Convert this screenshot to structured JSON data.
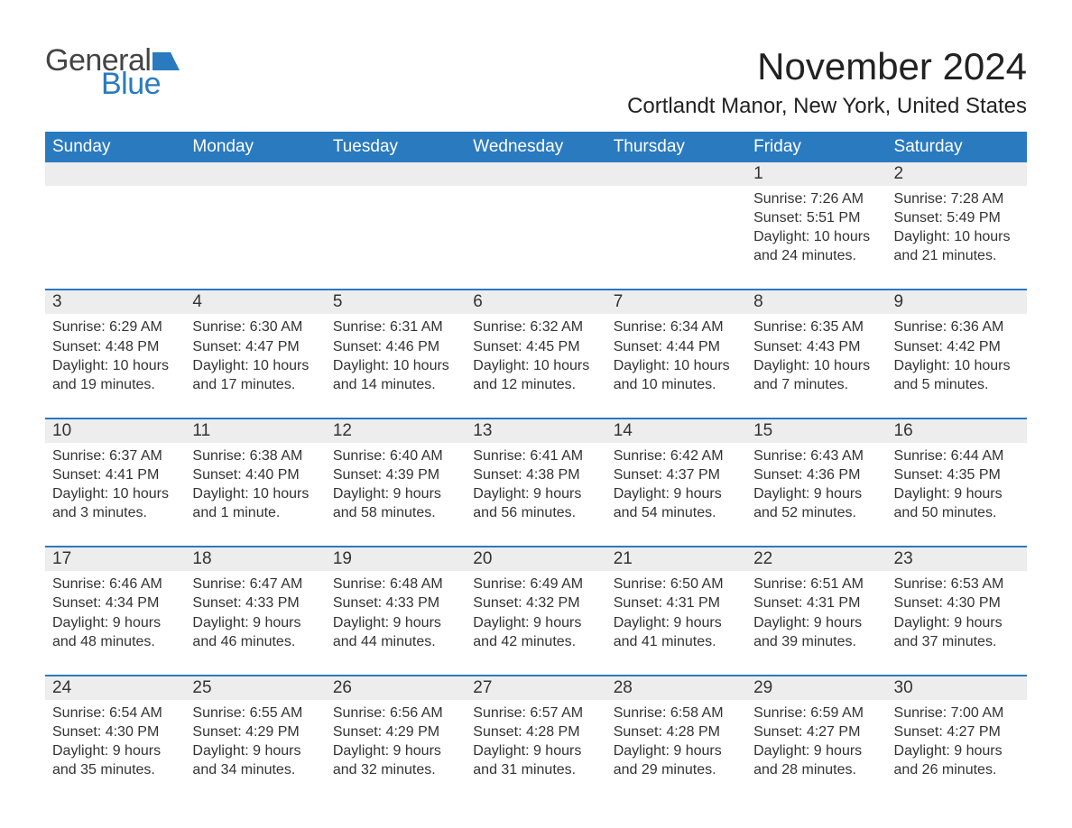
{
  "logo": {
    "text1": "General",
    "text2": "Blue",
    "shape_color": "#2a7ac0"
  },
  "title": "November 2024",
  "location": "Cortlandt Manor, New York, United States",
  "colors": {
    "header_bg": "#2a7ac0",
    "header_text": "#ffffff",
    "daynum_bg": "#ededed",
    "body_text": "#333333",
    "row_border": "#2a7ac0",
    "page_bg": "#ffffff"
  },
  "typography": {
    "title_fontsize": 42,
    "location_fontsize": 24,
    "header_fontsize": 19,
    "daynum_fontsize": 19,
    "body_fontsize": 16
  },
  "day_headers": [
    "Sunday",
    "Monday",
    "Tuesday",
    "Wednesday",
    "Thursday",
    "Friday",
    "Saturday"
  ],
  "weeks": [
    [
      {
        "n": "",
        "sunrise": "",
        "sunset": "",
        "daylight": ""
      },
      {
        "n": "",
        "sunrise": "",
        "sunset": "",
        "daylight": ""
      },
      {
        "n": "",
        "sunrise": "",
        "sunset": "",
        "daylight": ""
      },
      {
        "n": "",
        "sunrise": "",
        "sunset": "",
        "daylight": ""
      },
      {
        "n": "",
        "sunrise": "",
        "sunset": "",
        "daylight": ""
      },
      {
        "n": "1",
        "sunrise": "Sunrise: 7:26 AM",
        "sunset": "Sunset: 5:51 PM",
        "daylight": "Daylight: 10 hours and 24 minutes."
      },
      {
        "n": "2",
        "sunrise": "Sunrise: 7:28 AM",
        "sunset": "Sunset: 5:49 PM",
        "daylight": "Daylight: 10 hours and 21 minutes."
      }
    ],
    [
      {
        "n": "3",
        "sunrise": "Sunrise: 6:29 AM",
        "sunset": "Sunset: 4:48 PM",
        "daylight": "Daylight: 10 hours and 19 minutes."
      },
      {
        "n": "4",
        "sunrise": "Sunrise: 6:30 AM",
        "sunset": "Sunset: 4:47 PM",
        "daylight": "Daylight: 10 hours and 17 minutes."
      },
      {
        "n": "5",
        "sunrise": "Sunrise: 6:31 AM",
        "sunset": "Sunset: 4:46 PM",
        "daylight": "Daylight: 10 hours and 14 minutes."
      },
      {
        "n": "6",
        "sunrise": "Sunrise: 6:32 AM",
        "sunset": "Sunset: 4:45 PM",
        "daylight": "Daylight: 10 hours and 12 minutes."
      },
      {
        "n": "7",
        "sunrise": "Sunrise: 6:34 AM",
        "sunset": "Sunset: 4:44 PM",
        "daylight": "Daylight: 10 hours and 10 minutes."
      },
      {
        "n": "8",
        "sunrise": "Sunrise: 6:35 AM",
        "sunset": "Sunset: 4:43 PM",
        "daylight": "Daylight: 10 hours and 7 minutes."
      },
      {
        "n": "9",
        "sunrise": "Sunrise: 6:36 AM",
        "sunset": "Sunset: 4:42 PM",
        "daylight": "Daylight: 10 hours and 5 minutes."
      }
    ],
    [
      {
        "n": "10",
        "sunrise": "Sunrise: 6:37 AM",
        "sunset": "Sunset: 4:41 PM",
        "daylight": "Daylight: 10 hours and 3 minutes."
      },
      {
        "n": "11",
        "sunrise": "Sunrise: 6:38 AM",
        "sunset": "Sunset: 4:40 PM",
        "daylight": "Daylight: 10 hours and 1 minute."
      },
      {
        "n": "12",
        "sunrise": "Sunrise: 6:40 AM",
        "sunset": "Sunset: 4:39 PM",
        "daylight": "Daylight: 9 hours and 58 minutes."
      },
      {
        "n": "13",
        "sunrise": "Sunrise: 6:41 AM",
        "sunset": "Sunset: 4:38 PM",
        "daylight": "Daylight: 9 hours and 56 minutes."
      },
      {
        "n": "14",
        "sunrise": "Sunrise: 6:42 AM",
        "sunset": "Sunset: 4:37 PM",
        "daylight": "Daylight: 9 hours and 54 minutes."
      },
      {
        "n": "15",
        "sunrise": "Sunrise: 6:43 AM",
        "sunset": "Sunset: 4:36 PM",
        "daylight": "Daylight: 9 hours and 52 minutes."
      },
      {
        "n": "16",
        "sunrise": "Sunrise: 6:44 AM",
        "sunset": "Sunset: 4:35 PM",
        "daylight": "Daylight: 9 hours and 50 minutes."
      }
    ],
    [
      {
        "n": "17",
        "sunrise": "Sunrise: 6:46 AM",
        "sunset": "Sunset: 4:34 PM",
        "daylight": "Daylight: 9 hours and 48 minutes."
      },
      {
        "n": "18",
        "sunrise": "Sunrise: 6:47 AM",
        "sunset": "Sunset: 4:33 PM",
        "daylight": "Daylight: 9 hours and 46 minutes."
      },
      {
        "n": "19",
        "sunrise": "Sunrise: 6:48 AM",
        "sunset": "Sunset: 4:33 PM",
        "daylight": "Daylight: 9 hours and 44 minutes."
      },
      {
        "n": "20",
        "sunrise": "Sunrise: 6:49 AM",
        "sunset": "Sunset: 4:32 PM",
        "daylight": "Daylight: 9 hours and 42 minutes."
      },
      {
        "n": "21",
        "sunrise": "Sunrise: 6:50 AM",
        "sunset": "Sunset: 4:31 PM",
        "daylight": "Daylight: 9 hours and 41 minutes."
      },
      {
        "n": "22",
        "sunrise": "Sunrise: 6:51 AM",
        "sunset": "Sunset: 4:31 PM",
        "daylight": "Daylight: 9 hours and 39 minutes."
      },
      {
        "n": "23",
        "sunrise": "Sunrise: 6:53 AM",
        "sunset": "Sunset: 4:30 PM",
        "daylight": "Daylight: 9 hours and 37 minutes."
      }
    ],
    [
      {
        "n": "24",
        "sunrise": "Sunrise: 6:54 AM",
        "sunset": "Sunset: 4:30 PM",
        "daylight": "Daylight: 9 hours and 35 minutes."
      },
      {
        "n": "25",
        "sunrise": "Sunrise: 6:55 AM",
        "sunset": "Sunset: 4:29 PM",
        "daylight": "Daylight: 9 hours and 34 minutes."
      },
      {
        "n": "26",
        "sunrise": "Sunrise: 6:56 AM",
        "sunset": "Sunset: 4:29 PM",
        "daylight": "Daylight: 9 hours and 32 minutes."
      },
      {
        "n": "27",
        "sunrise": "Sunrise: 6:57 AM",
        "sunset": "Sunset: 4:28 PM",
        "daylight": "Daylight: 9 hours and 31 minutes."
      },
      {
        "n": "28",
        "sunrise": "Sunrise: 6:58 AM",
        "sunset": "Sunset: 4:28 PM",
        "daylight": "Daylight: 9 hours and 29 minutes."
      },
      {
        "n": "29",
        "sunrise": "Sunrise: 6:59 AM",
        "sunset": "Sunset: 4:27 PM",
        "daylight": "Daylight: 9 hours and 28 minutes."
      },
      {
        "n": "30",
        "sunrise": "Sunrise: 7:00 AM",
        "sunset": "Sunset: 4:27 PM",
        "daylight": "Daylight: 9 hours and 26 minutes."
      }
    ]
  ]
}
